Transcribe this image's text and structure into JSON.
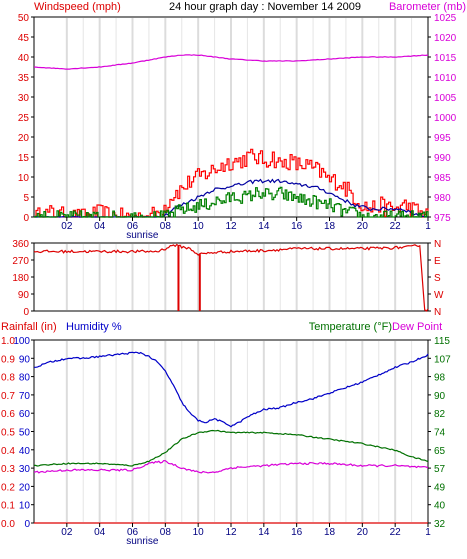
{
  "chart_data": [
    {
      "type": "line",
      "title": "24 hour graph day : November 14 2009",
      "ylabel": "Windspeed (mph)",
      "y2label": "Barometer (mb)",
      "x_ticks": [
        "02",
        "04",
        "06",
        "08",
        "10",
        "12",
        "14",
        "16",
        "18",
        "20",
        "22",
        "1"
      ],
      "sunrise_label": "sunrise",
      "ylim": [
        0,
        50
      ],
      "y_ticks": [
        "0",
        "5",
        "10",
        "15",
        "20",
        "25",
        "30",
        "35",
        "40",
        "45",
        "50"
      ],
      "y2lim": [
        975,
        1025
      ],
      "y2_ticks": [
        "975",
        "980",
        "985",
        "990",
        "995",
        "1000",
        "1005",
        "1010",
        "1015",
        "1020",
        "1025"
      ],
      "grid": true,
      "series": [
        {
          "color": "#ff0000",
          "axis": "left",
          "style": "spiky",
          "x": [
            0,
            1,
            2,
            3,
            4,
            5,
            6,
            7,
            7.5,
            8,
            8.5,
            9,
            9.5,
            10,
            10.5,
            11,
            11.5,
            12,
            12.5,
            13,
            13.5,
            14,
            14.5,
            15,
            15.5,
            16,
            16.5,
            17,
            17.5,
            18,
            18.5,
            19,
            19.5,
            20,
            20.5,
            21,
            21.5,
            22,
            22.5,
            23,
            23.5,
            24
          ],
          "values": [
            0,
            1,
            0,
            0,
            1,
            0,
            0,
            0,
            1,
            3,
            6,
            7,
            9,
            10,
            11,
            12,
            13,
            14,
            14,
            15,
            15,
            14,
            15,
            13,
            14,
            13,
            13,
            12,
            11,
            9,
            9,
            7,
            5,
            3,
            2,
            3,
            2,
            2,
            3,
            2,
            1,
            0
          ]
        },
        {
          "color": "#0000a0",
          "axis": "left",
          "style": "smooth",
          "x": [
            0,
            7.5,
            8,
            8.5,
            9,
            9.5,
            10,
            10.5,
            11,
            11.5,
            12,
            12.5,
            13,
            13.5,
            14,
            14.5,
            15,
            15.5,
            16,
            16.5,
            17,
            17.5,
            18,
            18.5,
            19,
            19.5,
            20,
            20.5,
            21,
            21.5,
            22,
            22.5,
            23,
            23.5,
            24
          ],
          "values": [
            0,
            0,
            0.5,
            2,
            3,
            4,
            5,
            6,
            7,
            7,
            8,
            8,
            8.5,
            9,
            9,
            9,
            9,
            8.5,
            8,
            8,
            7.5,
            7,
            6,
            5,
            4,
            3,
            2.5,
            2,
            2,
            2,
            2,
            2,
            1,
            0.5,
            0
          ]
        },
        {
          "color": "#008000",
          "axis": "left",
          "style": "spiky",
          "x": [
            0,
            7.5,
            8,
            8.5,
            9,
            9.5,
            10,
            10.5,
            11,
            11.5,
            12,
            12.5,
            13,
            13.5,
            14,
            14.5,
            15,
            15.5,
            16,
            16.5,
            17,
            17.5,
            18,
            18.5,
            19,
            19.5,
            20,
            20.5,
            21,
            24
          ],
          "values": [
            0,
            0,
            0,
            1,
            2,
            2,
            3,
            3,
            4,
            4,
            5,
            5,
            5,
            6,
            6,
            5,
            6,
            5,
            5,
            4,
            4,
            3,
            3,
            2,
            1,
            1,
            0,
            0,
            0,
            0
          ]
        },
        {
          "color": "#d800d8",
          "axis": "right",
          "style": "smooth",
          "x": [
            0,
            2,
            4,
            6,
            8,
            9,
            10,
            11,
            12,
            14,
            16,
            18,
            20,
            22,
            24
          ],
          "values": [
            1012.5,
            1012,
            1012.5,
            1013.5,
            1015,
            1015.5,
            1015.5,
            1015,
            1014.5,
            1014,
            1014,
            1014.5,
            1015,
            1015,
            1015.5
          ]
        }
      ]
    },
    {
      "type": "line",
      "ylim": [
        0,
        360
      ],
      "y_ticks": [
        "0",
        "90",
        "180",
        "270",
        "360"
      ],
      "y2_ticks": [
        "N",
        "W",
        "S",
        "E",
        "N"
      ],
      "grid": true,
      "series": [
        {
          "color": "#dd0000",
          "style": "jittery",
          "x": [
            0,
            6,
            7.5,
            8,
            8.5,
            9,
            9.5,
            10,
            11,
            12,
            14,
            16,
            18,
            20,
            22,
            23,
            23.5,
            23.8,
            24
          ],
          "values": [
            315,
            315,
            315,
            330,
            350,
            340,
            330,
            300,
            310,
            315,
            320,
            330,
            330,
            330,
            335,
            340,
            350,
            5,
            5
          ],
          "spikes": [
            {
              "x": 8.8,
              "to": 0
            },
            {
              "x": 10.1,
              "to": 0
            }
          ]
        }
      ]
    },
    {
      "type": "line",
      "ylabel": "Rainfall (in)",
      "ylabel2": "Humidity %",
      "y2label": "Temperature (°F)",
      "y2label2": "Dew Point",
      "x_ticks": [
        "02",
        "04",
        "06",
        "08",
        "10",
        "12",
        "14",
        "16",
        "18",
        "20",
        "22",
        "1"
      ],
      "sunrise_label": "sunrise",
      "ylim": [
        0,
        1
      ],
      "y_ticks": [
        "0.0",
        "0.1",
        "0.2",
        "0.3",
        "0.4",
        "0.5",
        "0.6",
        "0.7",
        "0.8",
        "0.9",
        "1.0"
      ],
      "y_ticks_humidity": [
        "0",
        "10",
        "20",
        "30",
        "40",
        "50",
        "60",
        "70",
        "80",
        "90",
        "100"
      ],
      "y2lim": [
        32,
        115
      ],
      "y2_ticks": [
        "32",
        "40",
        "49",
        "57",
        "65",
        "74",
        "82",
        "90",
        "98",
        "107",
        "115"
      ],
      "grid": true,
      "series": [
        {
          "name": "Humidity %",
          "color": "#0000c8",
          "axis": "humidity",
          "x": [
            0,
            1,
            2,
            3,
            4,
            5,
            6,
            6.5,
            7,
            7.5,
            8,
            8.5,
            9,
            9.5,
            10,
            10.5,
            11,
            11.5,
            12,
            12.5,
            13,
            14,
            15,
            16,
            17,
            18,
            19,
            20,
            21,
            22,
            23,
            24
          ],
          "values": [
            85,
            88,
            90,
            90,
            91,
            92,
            93,
            93,
            91,
            88,
            83,
            75,
            66,
            60,
            56,
            55,
            57,
            55,
            53,
            55,
            58,
            62,
            63,
            66,
            68,
            71,
            74,
            77,
            81,
            85,
            88,
            92
          ]
        },
        {
          "name": "Temperature",
          "color": "#007000",
          "axis": "right",
          "x": [
            0,
            2,
            4,
            6,
            7,
            8,
            9,
            10,
            11,
            12,
            14,
            16,
            18,
            20,
            22,
            23,
            24
          ],
          "values": [
            58,
            59,
            59,
            58,
            60,
            64,
            70,
            73,
            74,
            73,
            73,
            72,
            70,
            68,
            65,
            62,
            60
          ]
        },
        {
          "name": "Dew Point",
          "color": "#d800d8",
          "axis": "right",
          "x": [
            0,
            2,
            4,
            6,
            7,
            8,
            9,
            10,
            11,
            12,
            14,
            16,
            18,
            20,
            22,
            24
          ],
          "values": [
            55,
            56,
            56,
            56,
            59,
            60,
            57,
            55,
            55,
            57,
            58,
            59,
            59,
            58,
            58,
            57
          ]
        },
        {
          "name": "Rainfall",
          "color": "#dd0000",
          "axis": "left",
          "x": [
            0,
            24
          ],
          "values": [
            0,
            0
          ]
        }
      ]
    }
  ]
}
